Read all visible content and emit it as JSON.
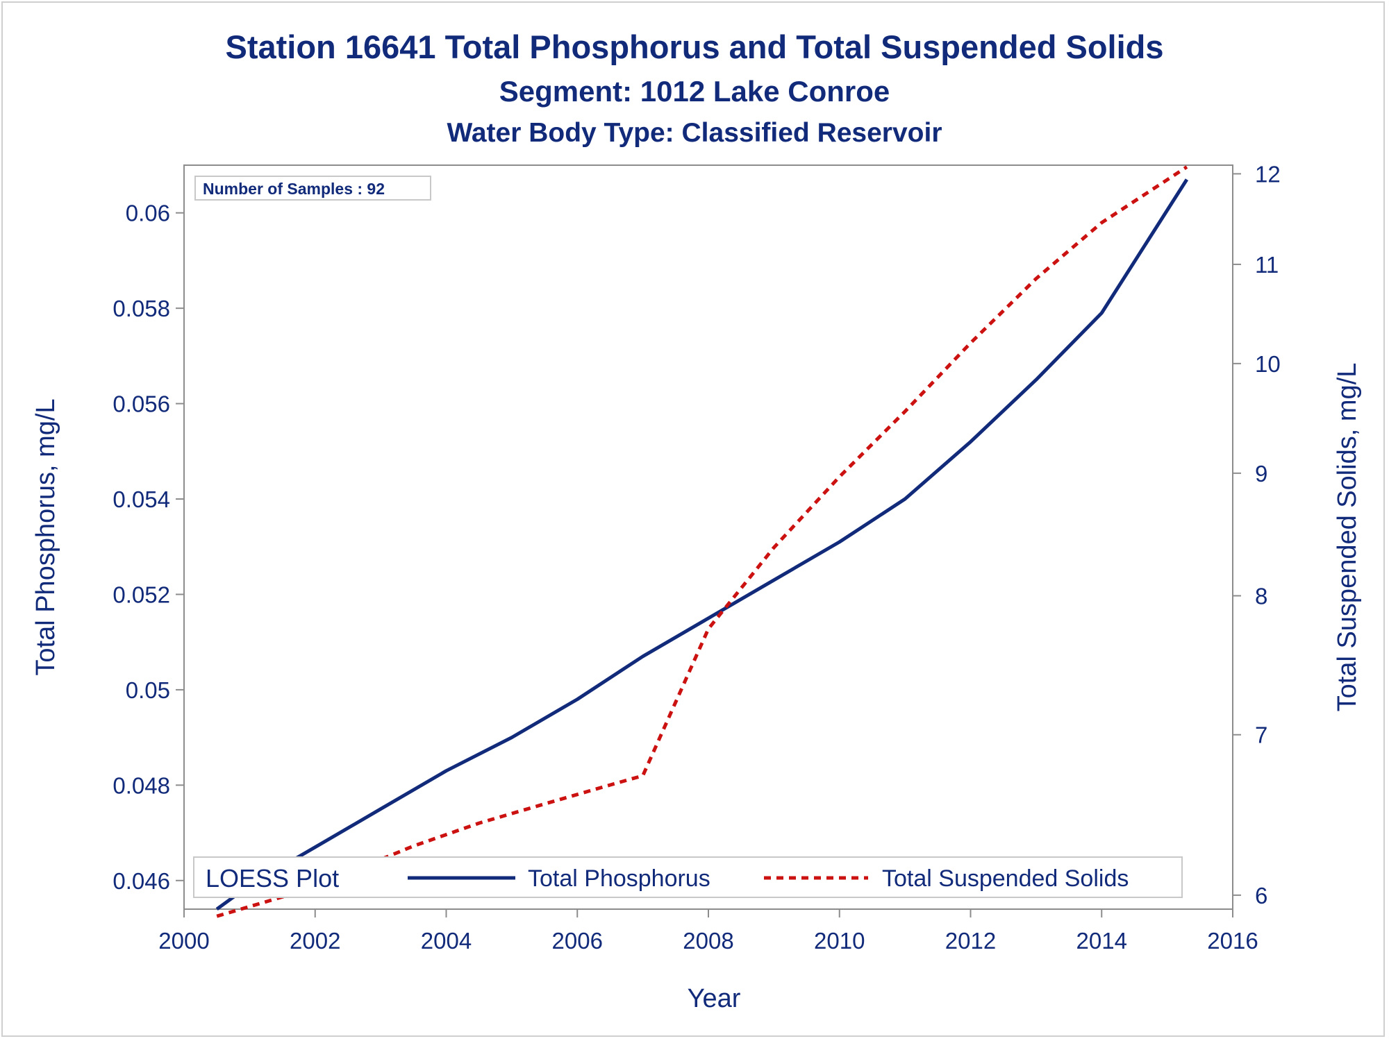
{
  "chart_data": {
    "type": "line",
    "title": "Station 16641  Total Phosphorus and Total Suspended Solids",
    "subtitle": "Segment: 1012  Lake Conroe",
    "subtitle2": "Water Body Type: Classified Reservoir",
    "xlabel": "Year",
    "ylabel": "Total Phosphorus, mg/L",
    "y2label": "Total Suspended Solids, mg/L",
    "xlim": [
      2000,
      2016
    ],
    "ylim": [
      0.0454,
      0.061
    ],
    "y2lim": [
      5.92,
      12.1
    ],
    "y2scale": "log",
    "x_ticks": [
      "2000",
      "2002",
      "2004",
      "2006",
      "2008",
      "2010",
      "2012",
      "2014",
      "2016"
    ],
    "y_ticks": [
      "0.046",
      "0.048",
      "0.05",
      "0.052",
      "0.054",
      "0.056",
      "0.058",
      "0.06"
    ],
    "y2_ticks": [
      "6",
      "7",
      "8",
      "9",
      "10",
      "11",
      "12"
    ],
    "inset": "Number of Samples : 92",
    "legend_title": "LOESS Plot",
    "legend_position": "bottom-inside",
    "grid": false,
    "series": [
      {
        "name": "Total Phosphorus",
        "axis": "left",
        "color": "#112a7a",
        "style": "solid",
        "x": [
          2000.5,
          2001.0,
          2002.0,
          2003.0,
          2004.0,
          2005.0,
          2006.0,
          2007.0,
          2008.0,
          2009.0,
          2010.0,
          2011.0,
          2012.0,
          2013.0,
          2014.0,
          2015.3
        ],
        "values": [
          0.0454,
          0.0459,
          0.0467,
          0.0475,
          0.0483,
          0.049,
          0.0498,
          0.0507,
          0.0515,
          0.0523,
          0.0531,
          0.054,
          0.0552,
          0.0565,
          0.0579,
          0.0607
        ]
      },
      {
        "name": "Total Suspended Solids",
        "axis": "right",
        "color": "#cc1111",
        "style": "dashed",
        "x": [
          2000.5,
          2001.5,
          2002.5,
          2003.5,
          2004.5,
          2005.5,
          2006.5,
          2007.0,
          2008.0,
          2009.0,
          2010.0,
          2011.0,
          2012.0,
          2013.0,
          2014.0,
          2015.3
        ],
        "values": [
          5.88,
          5.99,
          6.13,
          6.29,
          6.43,
          6.55,
          6.67,
          6.73,
          7.75,
          8.38,
          8.97,
          9.55,
          10.2,
          10.85,
          11.45,
          12.08
        ]
      }
    ]
  }
}
